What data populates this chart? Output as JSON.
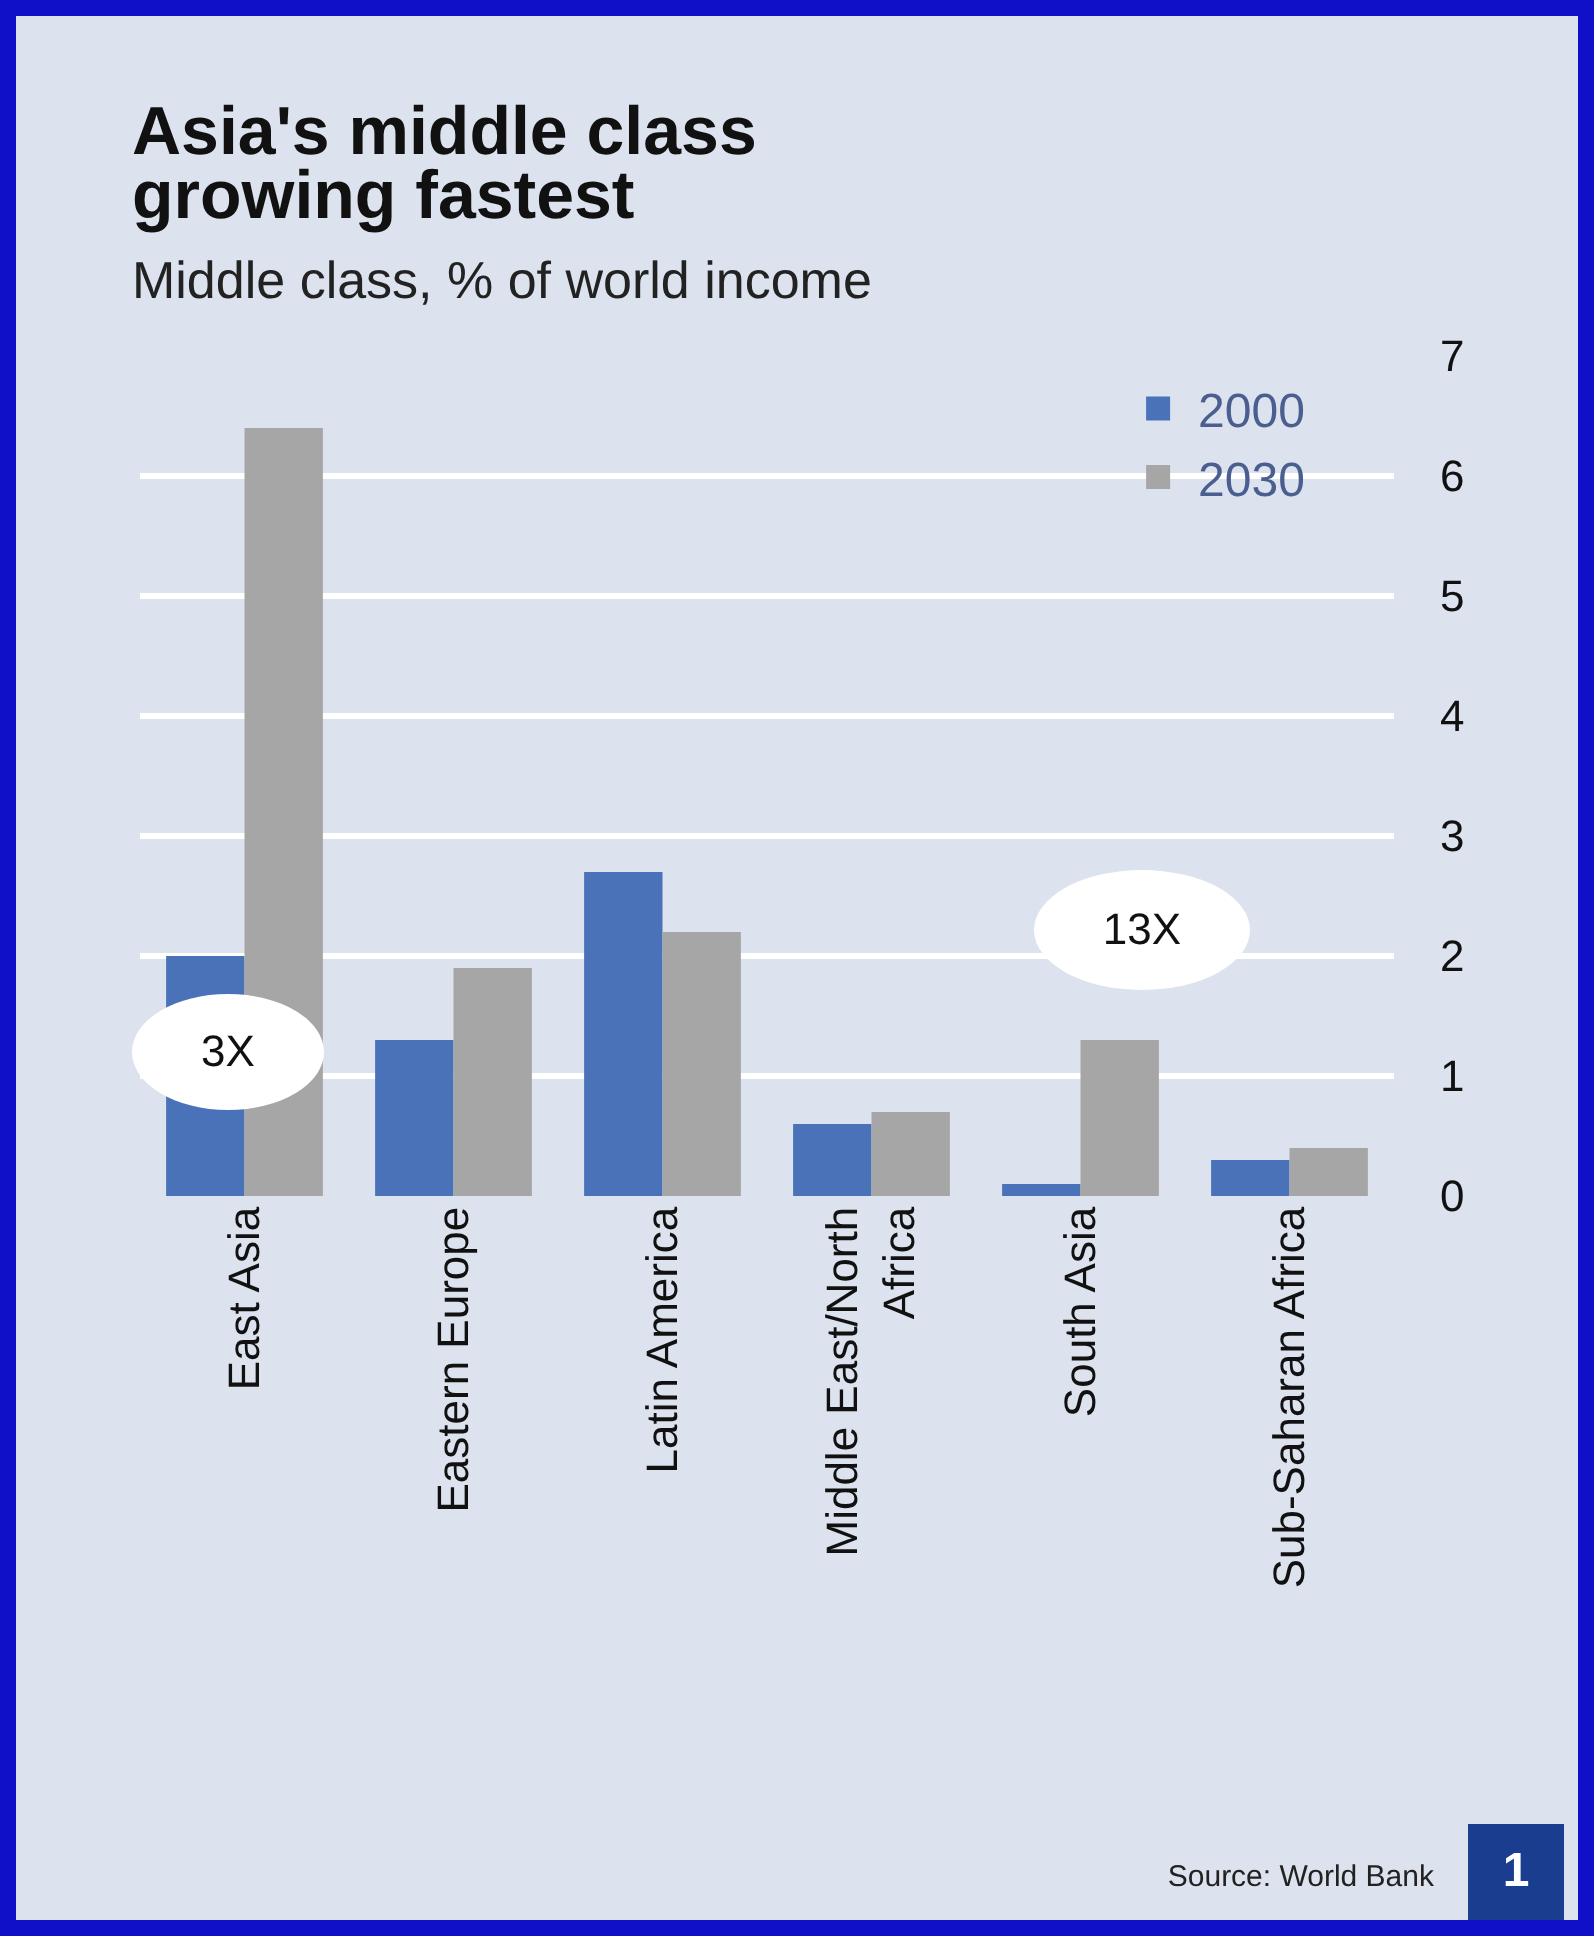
{
  "chart_data": {
    "type": "bar",
    "title": "Asia's middle class growing fastest",
    "subtitle": "Middle class, % of world income",
    "categories": [
      "East Asia",
      "Eastern Europe",
      "Latin America",
      "Middle East/North Africa",
      "South Asia",
      "Sub-Saharan Africa"
    ],
    "series": [
      {
        "name": "2000",
        "color": "#4a72b8",
        "values": [
          2.0,
          1.3,
          2.7,
          0.6,
          0.1,
          0.3
        ]
      },
      {
        "name": "2030",
        "color": "#a6a6a6",
        "values": [
          6.4,
          1.9,
          2.2,
          0.7,
          1.3,
          0.4
        ]
      }
    ],
    "ylim": [
      0,
      7
    ],
    "yticks": [
      0,
      1,
      2,
      3,
      4,
      5,
      6,
      7
    ],
    "grid": "y",
    "legend": "top right",
    "annotations": [
      "3X",
      "13X",
      "Source: World Bank",
      "1"
    ]
  }
}
